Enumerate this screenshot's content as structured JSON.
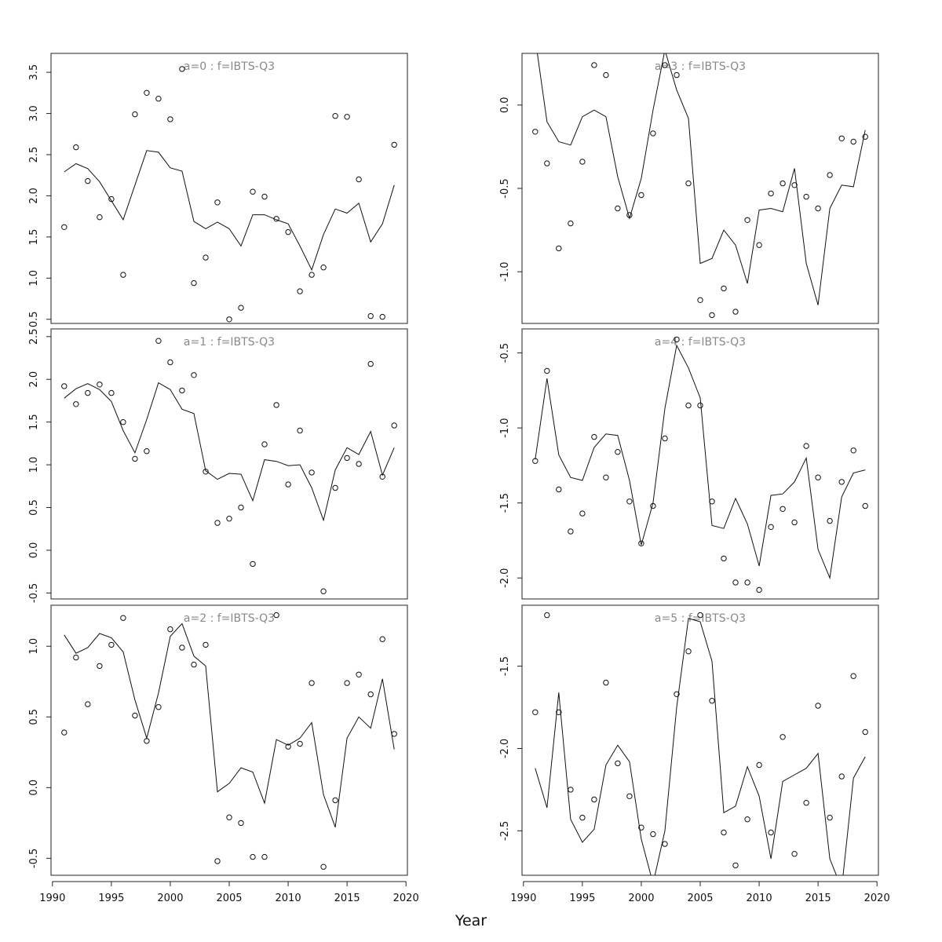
{
  "chart_data": {
    "type": "scatter",
    "xlabel": "Year",
    "xlim": [
      1991,
      2019
    ],
    "xticks": [
      1990,
      1995,
      2000,
      2005,
      2010,
      2015,
      2020
    ],
    "years": [
      1991,
      1992,
      1993,
      1994,
      1995,
      1996,
      1997,
      1998,
      1999,
      2000,
      2001,
      2002,
      2003,
      2004,
      2005,
      2006,
      2007,
      2008,
      2009,
      2010,
      2011,
      2012,
      2013,
      2014,
      2015,
      2016,
      2017,
      2018,
      2019
    ],
    "panels": [
      {
        "title": "a=0  :  f=IBTS-Q3",
        "ylim": [
          0.45,
          3.73
        ],
        "yticks": [
          0.5,
          1.0,
          1.5,
          2.0,
          2.5,
          3.0,
          3.5
        ],
        "yticklabels": [
          "0.5",
          "1.0",
          "1.5",
          "2.0",
          "2.5",
          "3.0",
          "3.5"
        ],
        "observed": [
          1.62,
          2.59,
          2.18,
          1.74,
          1.96,
          1.04,
          2.99,
          3.25,
          3.18,
          2.93,
          3.54,
          0.94,
          1.25,
          1.92,
          0.5,
          0.64,
          2.05,
          1.99,
          1.72,
          1.56,
          0.84,
          1.04,
          1.13,
          2.97,
          2.96,
          2.2,
          0.54,
          0.53,
          2.62
        ],
        "fitted": [
          2.29,
          2.39,
          2.33,
          2.17,
          1.94,
          1.71,
          2.13,
          2.55,
          2.53,
          2.34,
          2.3,
          1.69,
          1.6,
          1.68,
          1.6,
          1.39,
          1.77,
          1.77,
          1.71,
          1.66,
          1.39,
          1.1,
          1.53,
          1.84,
          1.79,
          1.91,
          1.44,
          1.66,
          2.13
        ]
      },
      {
        "title": "a=1  :  f=IBTS-Q3",
        "ylim": [
          -0.57,
          2.59
        ],
        "yticks": [
          -0.5,
          0.0,
          0.5,
          1.0,
          1.5,
          2.0,
          2.5
        ],
        "yticklabels": [
          "-0.5",
          "0.0",
          "0.5",
          "1.0",
          "1.5",
          "2.0",
          "2.5"
        ],
        "observed": [
          1.92,
          1.71,
          1.84,
          1.94,
          1.84,
          1.5,
          1.07,
          1.16,
          2.45,
          2.2,
          1.87,
          2.05,
          0.92,
          0.32,
          0.37,
          0.5,
          -0.16,
          1.24,
          1.7,
          0.77,
          1.4,
          0.91,
          -0.48,
          0.73,
          1.08,
          1.01,
          2.18,
          0.86,
          1.46
        ],
        "fitted": [
          1.78,
          1.89,
          1.95,
          1.88,
          1.74,
          1.4,
          1.14,
          1.53,
          1.96,
          1.88,
          1.65,
          1.6,
          0.93,
          0.83,
          0.9,
          0.89,
          0.58,
          1.06,
          1.04,
          0.99,
          1.0,
          0.73,
          0.35,
          0.94,
          1.2,
          1.12,
          1.39,
          0.88,
          1.2
        ]
      },
      {
        "title": "a=2  :  f=IBTS-Q3",
        "ylim": [
          -0.62,
          1.29
        ],
        "yticks": [
          -0.5,
          0.0,
          0.5,
          1.0
        ],
        "yticklabels": [
          "-0.5",
          "0.0",
          "0.5",
          "1.0"
        ],
        "observed": [
          0.39,
          0.92,
          0.59,
          0.86,
          1.01,
          1.2,
          0.51,
          0.33,
          0.57,
          1.12,
          0.99,
          0.87,
          1.01,
          -0.52,
          -0.21,
          -0.25,
          -0.49,
          -0.49,
          1.22,
          0.29,
          0.31,
          0.74,
          -0.56,
          -0.09,
          0.74,
          0.8,
          0.66,
          1.05,
          0.38
        ],
        "fitted": [
          1.08,
          0.95,
          0.99,
          1.09,
          1.06,
          0.96,
          0.62,
          0.35,
          0.67,
          1.07,
          1.16,
          0.93,
          0.86,
          -0.03,
          0.03,
          0.14,
          0.11,
          -0.11,
          0.34,
          0.3,
          0.35,
          0.46,
          -0.05,
          -0.28,
          0.35,
          0.5,
          0.42,
          0.77,
          0.27
        ]
      },
      {
        "title": "a=3  :  f=IBTS-Q3",
        "ylim": [
          -1.31,
          0.31
        ],
        "yticks": [
          -1.0,
          -0.5,
          0.0
        ],
        "yticklabels": [
          "-1.0",
          "-0.5",
          "0.0"
        ],
        "observed": [
          -0.16,
          -0.35,
          -0.86,
          -0.71,
          -0.34,
          0.24,
          0.18,
          -0.62,
          -0.66,
          -0.54,
          -0.17,
          0.24,
          0.18,
          -0.47,
          -1.17,
          -1.26,
          -1.1,
          -1.24,
          -0.69,
          -0.84,
          -0.53,
          -0.47,
          -0.48,
          -0.55,
          -0.62,
          -0.42,
          -0.2,
          -0.22,
          -0.19
        ],
        "fitted": [
          0.4,
          -0.1,
          -0.22,
          -0.24,
          -0.07,
          -0.03,
          -0.07,
          -0.43,
          -0.68,
          -0.44,
          -0.03,
          0.33,
          0.09,
          -0.08,
          -0.95,
          -0.92,
          -0.75,
          -0.84,
          -1.07,
          -0.63,
          -0.62,
          -0.64,
          -0.38,
          -0.95,
          -1.2,
          -0.62,
          -0.48,
          -0.49,
          -0.15
        ]
      },
      {
        "title": "a=4  :  f=IBTS-Q3",
        "ylim": [
          -2.14,
          -0.34
        ],
        "yticks": [
          -2.0,
          -1.5,
          -1.0,
          -0.5
        ],
        "yticklabels": [
          "-2.0",
          "-1.5",
          "-1.0",
          "-0.5"
        ],
        "observed": [
          -1.22,
          -0.62,
          -1.41,
          -1.69,
          -1.57,
          -1.06,
          -1.33,
          -1.16,
          -1.49,
          -1.77,
          -1.52,
          -1.07,
          -0.41,
          -0.85,
          -0.85,
          -1.49,
          -1.87,
          -2.03,
          -2.03,
          -2.08,
          -1.66,
          -1.54,
          -1.63,
          -1.12,
          -1.33,
          -1.62,
          -1.36,
          -1.15,
          -1.52
        ],
        "fitted": [
          -1.21,
          -0.67,
          -1.18,
          -1.33,
          -1.35,
          -1.13,
          -1.04,
          -1.05,
          -1.35,
          -1.78,
          -1.5,
          -0.87,
          -0.45,
          -0.6,
          -0.8,
          -1.65,
          -1.67,
          -1.47,
          -1.64,
          -1.92,
          -1.45,
          -1.44,
          -1.36,
          -1.2,
          -1.81,
          -2.0,
          -1.46,
          -1.3,
          -1.28
        ]
      },
      {
        "title": "a=5  :  f=IBTS-Q3",
        "ylim": [
          -2.77,
          -1.13
        ],
        "yticks": [
          -2.5,
          -2.0,
          -1.5
        ],
        "yticklabels": [
          "-2.5",
          "-2.0",
          "-1.5"
        ],
        "observed": [
          -1.78,
          -1.19,
          -1.78,
          -2.25,
          -2.42,
          -2.31,
          -1.6,
          -2.09,
          -2.29,
          -2.48,
          -2.52,
          -2.58,
          -1.67,
          -1.41,
          -1.19,
          -1.71,
          -2.51,
          -2.71,
          -2.43,
          -2.1,
          -2.51,
          -1.93,
          -2.64,
          -2.33,
          -1.74,
          -2.42,
          -2.17,
          -1.56,
          -1.9
        ],
        "fitted": [
          -2.12,
          -2.36,
          -1.66,
          -2.43,
          -2.57,
          -2.49,
          -2.1,
          -1.98,
          -2.08,
          -2.55,
          -2.82,
          -2.5,
          -1.75,
          -1.21,
          -1.23,
          -1.47,
          -2.39,
          -2.35,
          -2.11,
          -2.29,
          -2.67,
          -2.2,
          -2.16,
          -2.12,
          -2.03,
          -2.67,
          -2.85,
          -2.18,
          -2.05
        ]
      }
    ]
  }
}
